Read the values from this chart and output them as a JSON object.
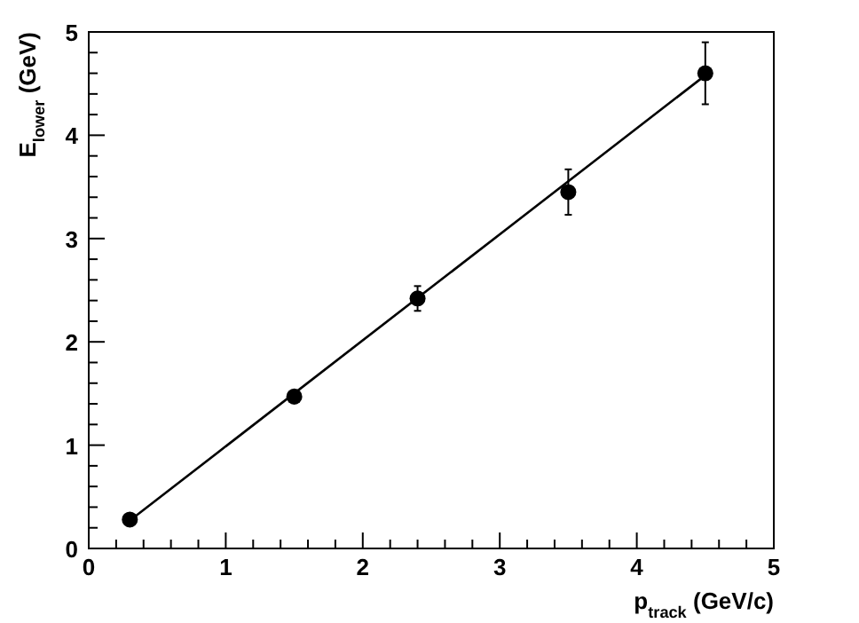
{
  "chart_data": {
    "type": "scatter",
    "xlabel": "p$_{track}$ (GeV/c)",
    "ylabel": "E$_{lower}$ (GeV)",
    "xlim": [
      0,
      5
    ],
    "ylim": [
      0,
      5
    ],
    "xticks": [
      0,
      {
        "value": 0.2,
        "label": null
      },
      {
        "value": 0.4,
        "label": null
      },
      {
        "value": 0.6,
        "label": null
      },
      {
        "value": 0.8,
        "label": null
      },
      1,
      {
        "value": 1.2,
        "label": null
      },
      {
        "value": 1.4,
        "label": null
      },
      {
        "value": 1.6,
        "label": null
      },
      {
        "value": 1.8,
        "label": null
      },
      2,
      {
        "value": 2.2,
        "label": null
      },
      {
        "value": 2.4,
        "label": null
      },
      {
        "value": 2.6,
        "label": null
      },
      {
        "value": 2.8,
        "label": null
      },
      3,
      {
        "value": 3.2,
        "label": null
      },
      {
        "value": 3.4,
        "label": null
      },
      {
        "value": 3.6,
        "label": null
      },
      {
        "value": 3.8,
        "label": null
      },
      4,
      {
        "value": 4.2,
        "label": null
      },
      {
        "value": 4.4,
        "label": null
      },
      {
        "value": 4.6,
        "label": null
      },
      {
        "value": 4.8,
        "label": null
      },
      5
    ],
    "yticks": [
      0,
      {
        "value": 0.2,
        "label": null
      },
      {
        "value": 0.4,
        "label": null
      },
      {
        "value": 0.6,
        "label": null
      },
      {
        "value": 0.8,
        "label": null
      },
      1,
      {
        "value": 1.2,
        "label": null
      },
      {
        "value": 1.4,
        "label": null
      },
      {
        "value": 1.6,
        "label": null
      },
      {
        "value": 1.8,
        "label": null
      },
      2,
      {
        "value": 2.2,
        "label": null
      },
      {
        "value": 2.4,
        "label": null
      },
      {
        "value": 2.6,
        "label": null
      },
      {
        "value": 2.8,
        "label": null
      },
      3,
      {
        "value": 3.2,
        "label": null
      },
      {
        "value": 3.4,
        "label": null
      },
      {
        "value": 3.6,
        "label": null
      },
      {
        "value": 3.8,
        "label": null
      },
      4,
      {
        "value": 4.2,
        "label": null
      },
      {
        "value": 4.4,
        "label": null
      },
      {
        "value": 4.6,
        "label": null
      },
      {
        "value": 4.8,
        "label": null
      },
      5
    ],
    "series": [
      {
        "marker": "circle",
        "color": "#000000",
        "x": [
          0.3,
          1.5,
          2.4,
          3.5,
          4.5
        ],
        "values": [
          0.28,
          1.47,
          2.42,
          3.45,
          4.6
        ],
        "errors": [
          null,
          null,
          0.12,
          0.22,
          0.3
        ]
      },
      {
        "type": "line",
        "marker": "none",
        "color": "#000000",
        "x": [
          0.3,
          4.5
        ],
        "values": [
          0.27,
          4.58
        ]
      }
    ]
  }
}
